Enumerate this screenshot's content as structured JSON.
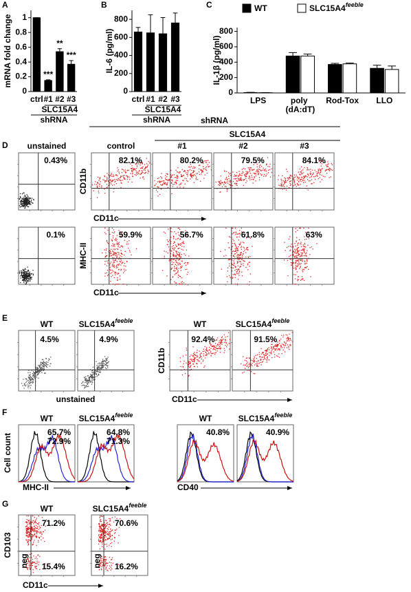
{
  "panel_labels": [
    "A",
    "B",
    "C",
    "D",
    "E",
    "F",
    "G"
  ],
  "chart_data": [
    {
      "type": "bar",
      "y_label": "mRNA fold change",
      "categories": [
        "ctrl",
        "#1",
        "#2",
        "#3"
      ],
      "values": [
        1,
        0.15,
        0.54,
        0.37
      ],
      "errors": [
        0,
        0.01,
        0.04,
        0.05
      ],
      "annotations": [
        null,
        "***",
        "**",
        "***"
      ],
      "color": "#000000",
      "ylim": [
        0,
        1.1
      ],
      "yticks": [
        0,
        0.2,
        0.4,
        0.6,
        0.8,
        1
      ],
      "group_labels": [
        "SLC15A4",
        "shRNA"
      ]
    },
    {
      "type": "bar",
      "y_label": "IL-6 (pg/ml)",
      "categories": [
        "ctrl",
        "#1",
        "#2",
        "#3"
      ],
      "values": [
        660,
        650,
        640,
        760
      ],
      "errors": [
        50,
        200,
        180,
        110
      ],
      "color": "#000000",
      "ylim": [
        0,
        900
      ],
      "yticks": [
        0,
        200,
        400,
        600,
        800
      ],
      "group_labels": [
        "SLC15A4",
        "shRNA"
      ]
    },
    {
      "type": "bar",
      "y_label": "IL-1β (pg/ml)",
      "categories": [
        "LPS",
        "poly (dA:dT)",
        "Rod-Tox",
        "LLO"
      ],
      "series": [
        {
          "name": "WT",
          "color": "#000000",
          "values": [
            5,
            480,
            370,
            320
          ],
          "errors": [
            3,
            45,
            15,
            40
          ]
        },
        {
          "name": "SLC15A4",
          "name_sup": "feeble",
          "color": "#ffffff",
          "values": [
            3,
            480,
            378,
            305
          ],
          "errors": [
            2,
            25,
            10,
            45
          ]
        }
      ],
      "ylim": [
        0,
        850
      ],
      "yticks": [
        0,
        200,
        400,
        600,
        800
      ]
    }
  ],
  "panel_d": {
    "header": "shRNA",
    "group": "SLC15A4",
    "columns": [
      "unstained",
      "control",
      "#1",
      "#2",
      "#3"
    ],
    "rows": [
      {
        "y_label": "CD11b",
        "x_label": "CD11c",
        "percents": [
          "0.43%",
          "82.1%",
          "80.2%",
          "79.5%",
          "84.1%"
        ]
      },
      {
        "y_label": "MHC-II",
        "x_label": "CD11c",
        "percents": [
          "0.1%",
          "59.9%",
          "56.7%",
          "61.8%",
          "63%"
        ]
      }
    ]
  },
  "panel_e": {
    "headers": [
      {
        "name": "WT"
      },
      {
        "name": "SLC15A4",
        "name_sup": "feeble"
      },
      {
        "name": "WT"
      },
      {
        "name": "SLC15A4",
        "name_sup": "feeble"
      }
    ],
    "percents": [
      "4.5%",
      "4.9%",
      "92.4%",
      "91.5%"
    ],
    "left_label": "unstained",
    "y_label": "CD11b",
    "x_label": "CD11c"
  },
  "panel_f": {
    "headers": [
      {
        "name": "WT"
      },
      {
        "name": "SLC15A4",
        "name_sup": "feeble"
      },
      {
        "name": "WT"
      },
      {
        "name": "SLC15A4",
        "name_sup": "feeble"
      }
    ],
    "percents": [
      [
        {
          "text": "65.7%",
          "color": "#2222dd"
        },
        {
          "text": "72.9%",
          "color": "#cc1111"
        }
      ],
      [
        {
          "text": "64.8%",
          "color": "#2222dd"
        },
        {
          "text": "71.3%",
          "color": "#cc1111"
        }
      ],
      [
        {
          "text": "40.8%",
          "color": "#cc1111"
        }
      ],
      [
        {
          "text": "40.9%",
          "color": "#cc1111"
        }
      ]
    ],
    "y_label": "Cell count",
    "x_labels": [
      "MHC-II",
      "CD40"
    ]
  },
  "panel_g": {
    "headers": [
      {
        "name": "WT"
      },
      {
        "name": "SLC15A4",
        "name_sup": "feeble"
      }
    ],
    "percents": [
      [
        "71.2%",
        "15.4%"
      ],
      [
        "70.6%",
        "16.2%"
      ]
    ],
    "gate_label": "neg",
    "y_label": "CD103",
    "x_label": "CD11c"
  }
}
